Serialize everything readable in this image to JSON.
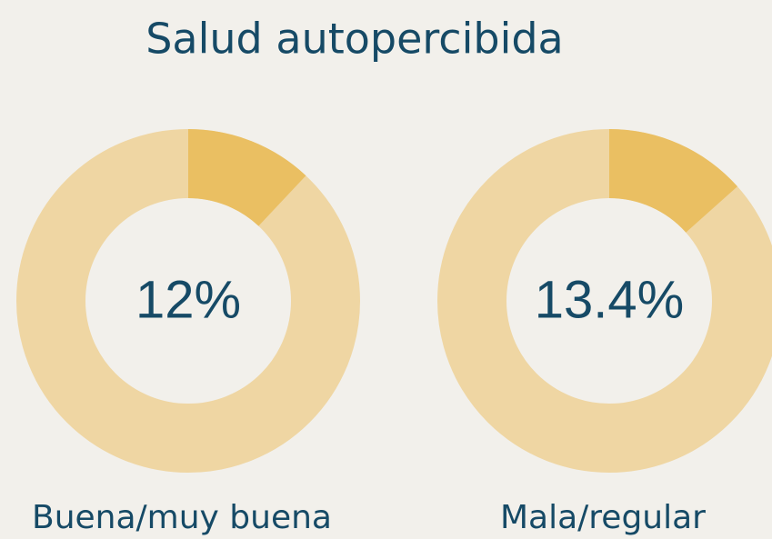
{
  "title": "Salud autopercibida",
  "chart_data": [
    {
      "type": "donut",
      "categories": [
        "Buena/muy buena"
      ],
      "values": [
        12
      ],
      "value_labels": [
        "12%"
      ],
      "color": "#eabf62",
      "track_color": "#efd6a3"
    },
    {
      "type": "donut",
      "categories": [
        "Mala/regular"
      ],
      "values": [
        13.4
      ],
      "value_labels": [
        "13.4%"
      ],
      "color": "#eabf62",
      "track_color": "#efd6a3"
    }
  ]
}
